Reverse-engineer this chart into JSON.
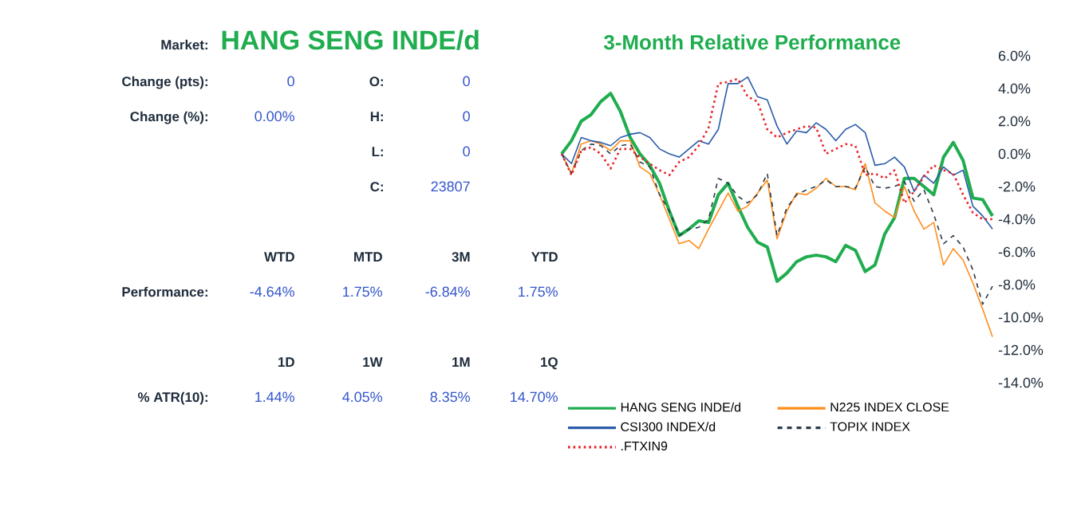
{
  "chart_data": [
    {
      "type": "other",
      "annotations": [
        "Market:",
        "HANG SENG INDE/d",
        "Change (pts):",
        "0",
        "O:",
        "0",
        "Change (%):",
        "0.00%",
        "H:",
        "0",
        "L:",
        "0",
        "C:",
        "23807",
        "WTD",
        "MTD",
        "3M",
        "YTD",
        "Performance:",
        "-4.64%",
        "1.75%",
        "-6.84%",
        "1.75%",
        "1D",
        "1W",
        "1M",
        "1Q",
        "% ATR(10):",
        "1.44%",
        "4.05%",
        "8.35%",
        "14.70%"
      ]
    },
    {
      "type": "line",
      "title": "3-Month Relative Performance",
      "categories": [
        null,
        null,
        null,
        null,
        null,
        null,
        null,
        null,
        null,
        null,
        null,
        null,
        null,
        null,
        null,
        null,
        null,
        null,
        null,
        null,
        null,
        null,
        null,
        null,
        null,
        null,
        null,
        null,
        null,
        null,
        null,
        null,
        null,
        null,
        null,
        null,
        null,
        null,
        null,
        null,
        null,
        null,
        null,
        null,
        null
      ],
      "ylim": [
        -14,
        6
      ],
      "yticks": [
        {
          "value": -14,
          "label": "-14.0%"
        },
        {
          "value": -12,
          "label": "-12.0%"
        },
        {
          "value": -10,
          "label": "-10.0%"
        },
        {
          "value": -8,
          "label": "-8.0%"
        },
        {
          "value": -6,
          "label": "-6.0%"
        },
        {
          "value": -4,
          "label": "-4.0%"
        },
        {
          "value": -2,
          "label": "-2.0%"
        },
        {
          "value": 0,
          "label": "0.0%"
        },
        {
          "value": 2,
          "label": "2.0%"
        },
        {
          "value": 4,
          "label": "4.0%"
        },
        {
          "value": 6,
          "label": "6.0%"
        }
      ],
      "legend": "bottom",
      "series": [
        {
          "name": "HANG SENG INDE/d",
          "color": "#1fad4f",
          "line_style": "solid",
          "values": [
            0,
            0.8,
            2.0,
            2.4,
            3.2,
            3.7,
            2.6,
            1.0,
            0,
            -0.7,
            -1.8,
            -3.5,
            -5.0,
            -4.6,
            -4.1,
            -4.2,
            -2.5,
            -1.8,
            -3.2,
            -4.5,
            -5.4,
            -5.7,
            -7.8,
            -7.3,
            -6.6,
            -6.3,
            -6.2,
            -6.3,
            -6.6,
            -5.6,
            -5.9,
            -7.2,
            -6.8,
            -4.9,
            -3.9,
            -1.5,
            -1.5,
            -2.0,
            -2.5,
            -0.2,
            0.7,
            -0.4,
            -2.7,
            -2.8,
            -3.8
          ]
        },
        {
          "name": "N225 INDEX CLOSE",
          "color": "#ff8c1a",
          "line_style": "solid",
          "values": [
            0,
            -1.2,
            0.6,
            0.8,
            0.6,
            0.2,
            0.8,
            0.8,
            -0.8,
            -1.2,
            -2.5,
            -4.0,
            -5.5,
            -5.3,
            -5.8,
            -4.6,
            -3.5,
            -2.4,
            -3.5,
            -3.2,
            -2.4,
            -1.6,
            -5.2,
            -3.5,
            -2.4,
            -2.5,
            -2.1,
            -1.5,
            -2.0,
            -2.0,
            -2.2,
            -0.6,
            -3.0,
            -3.5,
            -3.9,
            -2.0,
            -3.5,
            -4.6,
            -4.2,
            -6.8,
            -5.8,
            -6.5,
            -7.9,
            -9.5,
            -11.2
          ]
        },
        {
          "name": "CSI300 INDEX/d",
          "color": "#2a5caa",
          "line_style": "solid",
          "values": [
            0,
            -0.6,
            1.0,
            0.8,
            0.7,
            0.5,
            1.0,
            1.2,
            1.3,
            1.0,
            0.3,
            0.0,
            -0.2,
            0.3,
            0.8,
            0.6,
            1.5,
            4.3,
            4.3,
            4.7,
            3.5,
            3.3,
            1.7,
            0.6,
            1.4,
            1.3,
            1.9,
            1.5,
            0.8,
            1.5,
            1.8,
            1.3,
            -0.7,
            -0.6,
            -0.2,
            -0.8,
            -2.3,
            -1.3,
            -1.8,
            -0.8,
            -1.3,
            -1.0,
            -3.2,
            -3.8,
            -4.6
          ]
        },
        {
          "name": "TOPIX INDEX",
          "color": "#2b3a4a",
          "line_style": "dashed",
          "values": [
            0,
            -1.2,
            0.2,
            0.6,
            0.5,
            0.0,
            0.5,
            0.6,
            -0.5,
            -0.8,
            -2.5,
            -3.5,
            -5.0,
            -4.6,
            -4.5,
            -4.0,
            -1.5,
            -1.8,
            -2.6,
            -3.0,
            -2.5,
            -1.2,
            -5.0,
            -3.3,
            -2.5,
            -2.2,
            -2.0,
            -1.6,
            -2.0,
            -2.0,
            -2.1,
            -0.8,
            -2.0,
            -2.1,
            -2.0,
            -1.7,
            -2.9,
            -2.2,
            -3.7,
            -5.5,
            -5.0,
            -5.7,
            -7.1,
            -9.2,
            -8.1
          ]
        },
        {
          "name": ".FTXIN9",
          "color": "#e8232a",
          "line_style": "dotted",
          "values": [
            0,
            -1.3,
            0.2,
            0.4,
            0.0,
            -0.9,
            0.3,
            0.3,
            -0.2,
            -0.6,
            -1.0,
            -1.3,
            -0.5,
            -0.2,
            0.5,
            1.6,
            4.3,
            4.4,
            4.6,
            3.5,
            3.2,
            1.5,
            1.0,
            1.3,
            1.5,
            1.7,
            1.6,
            0.0,
            0.3,
            0.6,
            0.5,
            -1.3,
            -1.2,
            -1.5,
            -1.0,
            -3.0,
            -2.3,
            -1.4,
            -0.7,
            -1.0,
            -1.2,
            -2.5,
            -3.6,
            -4.0,
            -4.0
          ]
        }
      ]
    }
  ]
}
